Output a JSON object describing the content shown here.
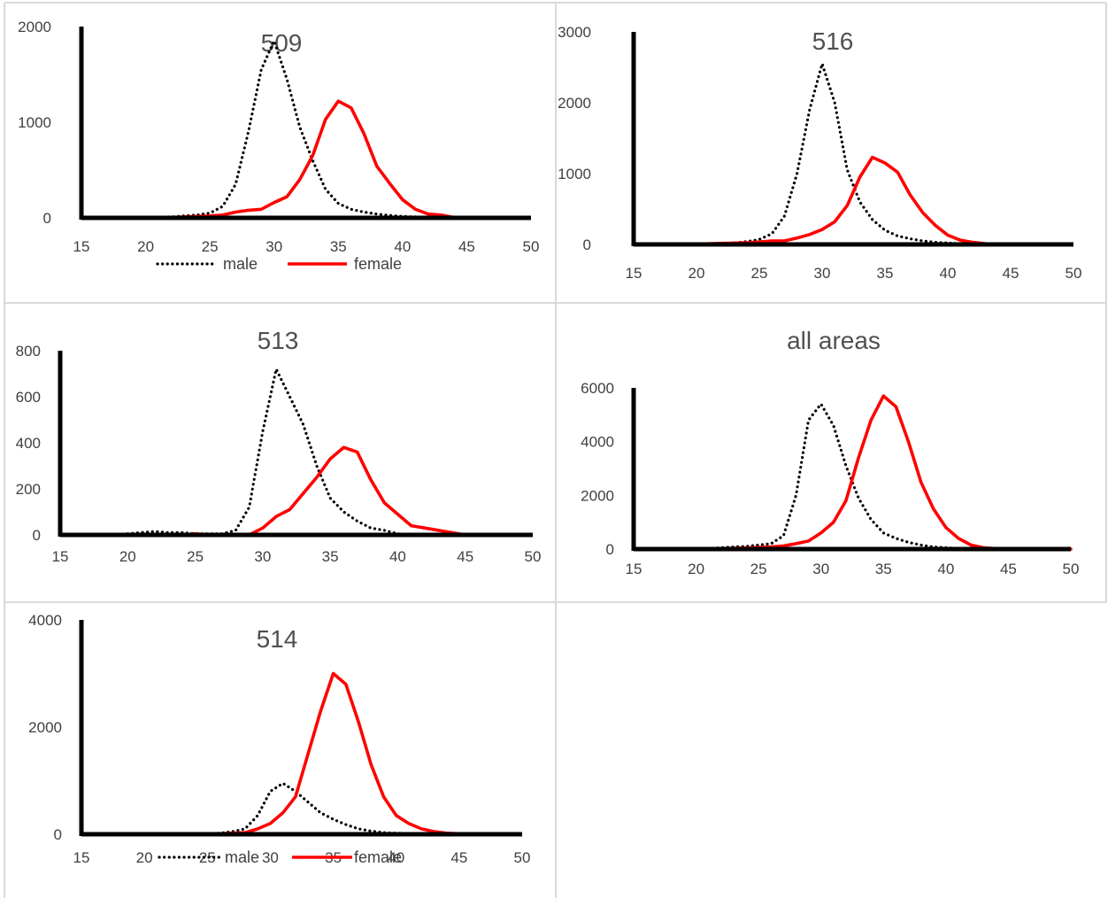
{
  "chart_data": [
    {
      "type": "line",
      "title": "509",
      "x": [
        16,
        17,
        18,
        19,
        20,
        21,
        22,
        23,
        24,
        25,
        26,
        27,
        28,
        29,
        30,
        31,
        32,
        33,
        34,
        35,
        36,
        37,
        38,
        39,
        40,
        41,
        42,
        43,
        44,
        45,
        46
      ],
      "xlim": [
        15,
        50
      ],
      "xticks": [
        15,
        20,
        25,
        30,
        35,
        40,
        45,
        50
      ],
      "ylim": [
        0,
        2000
      ],
      "yticks": [
        0,
        1000,
        2000
      ],
      "legend": "bottom",
      "series": [
        {
          "name": "male",
          "color": "#000000",
          "style": "dotted",
          "values": [
            0,
            0,
            0,
            0,
            0,
            5,
            10,
            20,
            30,
            50,
            120,
            350,
            900,
            1550,
            1850,
            1450,
            950,
            600,
            300,
            150,
            90,
            60,
            40,
            25,
            15,
            10,
            5,
            0,
            0,
            0,
            0
          ]
        },
        {
          "name": "female",
          "color": "#ff0000",
          "style": "solid",
          "values": [
            0,
            0,
            0,
            0,
            0,
            0,
            5,
            10,
            15,
            20,
            30,
            60,
            80,
            90,
            160,
            220,
            400,
            650,
            1030,
            1220,
            1150,
            880,
            540,
            360,
            190,
            90,
            40,
            30,
            5,
            0,
            0
          ]
        }
      ]
    },
    {
      "type": "line",
      "title": "516",
      "x": [
        16,
        17,
        18,
        19,
        20,
        21,
        22,
        23,
        24,
        25,
        26,
        27,
        28,
        29,
        30,
        31,
        32,
        33,
        34,
        35,
        36,
        37,
        38,
        39,
        40,
        41,
        42,
        43,
        44,
        45
      ],
      "xlim": [
        15,
        50
      ],
      "xticks": [
        15,
        20,
        25,
        30,
        35,
        40,
        45,
        50
      ],
      "ylim": [
        0,
        3000
      ],
      "yticks": [
        0,
        1000,
        2000,
        3000
      ],
      "legend": "none",
      "series": [
        {
          "name": "male",
          "color": "#000000",
          "style": "dotted",
          "values": [
            0,
            0,
            0,
            0,
            0,
            5,
            10,
            20,
            40,
            70,
            150,
            400,
            1000,
            1900,
            2550,
            2000,
            1050,
            600,
            350,
            200,
            120,
            80,
            50,
            30,
            20,
            10,
            5,
            0,
            0,
            0
          ]
        },
        {
          "name": "female",
          "color": "#ff0000",
          "style": "solid",
          "values": [
            0,
            0,
            0,
            0,
            0,
            10,
            15,
            20,
            25,
            35,
            50,
            50,
            90,
            140,
            210,
            320,
            550,
            950,
            1230,
            1150,
            1020,
            700,
            450,
            270,
            130,
            60,
            30,
            10,
            5,
            0
          ]
        }
      ]
    },
    {
      "type": "line",
      "title": "513",
      "xlim": [
        15,
        50
      ],
      "xticks": [
        15,
        20,
        25,
        30,
        35,
        40,
        45,
        50
      ],
      "ylim": [
        0,
        800
      ],
      "yticks": [
        0,
        200,
        400,
        600,
        800
      ],
      "legend": "none",
      "series": [
        {
          "name": "male",
          "color": "#000000",
          "style": "dotted",
          "x": [
            20,
            21,
            22,
            23,
            24,
            25,
            26,
            27,
            28,
            29,
            30,
            31,
            32,
            33,
            34,
            35,
            36,
            37,
            38,
            39,
            40,
            41
          ],
          "values": [
            5,
            10,
            15,
            10,
            10,
            5,
            5,
            5,
            20,
            120,
            450,
            720,
            600,
            480,
            300,
            160,
            100,
            60,
            30,
            20,
            5,
            0
          ]
        },
        {
          "name": "female",
          "color": "#ff0000",
          "style": "solid",
          "x": [
            22,
            23,
            24,
            25,
            26,
            27,
            28,
            29,
            30,
            31,
            32,
            33,
            34,
            35,
            36,
            37,
            38,
            39,
            40,
            41,
            42,
            43,
            44,
            45,
            47,
            48
          ],
          "values": [
            0,
            0,
            0,
            5,
            0,
            0,
            0,
            0,
            30,
            80,
            110,
            180,
            250,
            330,
            380,
            360,
            240,
            140,
            90,
            40,
            30,
            20,
            10,
            0,
            0,
            0
          ]
        }
      ]
    },
    {
      "type": "line",
      "title": "all areas",
      "x": [
        15,
        16,
        17,
        18,
        19,
        20,
        21,
        22,
        23,
        24,
        25,
        26,
        27,
        28,
        29,
        30,
        31,
        32,
        33,
        34,
        35,
        36,
        37,
        38,
        39,
        40,
        41,
        42,
        43,
        44,
        45,
        46,
        47,
        48,
        49,
        50
      ],
      "xlim": [
        15,
        50
      ],
      "xticks": [
        15,
        20,
        25,
        30,
        35,
        40,
        45,
        50
      ],
      "ylim": [
        0,
        6000
      ],
      "yticks": [
        0,
        2000,
        4000,
        6000
      ],
      "legend": "none",
      "series": [
        {
          "name": "male",
          "color": "#000000",
          "style": "dotted",
          "values": [
            0,
            0,
            0,
            0,
            0,
            10,
            20,
            50,
            80,
            100,
            150,
            200,
            500,
            2000,
            4800,
            5400,
            4600,
            3100,
            1900,
            1100,
            600,
            400,
            250,
            150,
            80,
            50,
            20,
            10,
            0,
            0,
            0,
            0,
            0,
            0,
            0,
            0
          ]
        },
        {
          "name": "female",
          "color": "#ff0000",
          "style": "solid",
          "values": [
            0,
            0,
            0,
            0,
            0,
            0,
            10,
            20,
            30,
            40,
            60,
            80,
            120,
            200,
            300,
            600,
            1000,
            1800,
            3400,
            4800,
            5700,
            5300,
            4000,
            2500,
            1500,
            800,
            400,
            150,
            50,
            20,
            10,
            0,
            0,
            0,
            0,
            0
          ]
        }
      ]
    },
    {
      "type": "line",
      "title": "514",
      "x": [
        18,
        19,
        20,
        21,
        22,
        23,
        24,
        25,
        26,
        27,
        28,
        29,
        30,
        31,
        32,
        33,
        34,
        35,
        36,
        37,
        38,
        39,
        40,
        41,
        42,
        43,
        44,
        45,
        46,
        47,
        48
      ],
      "xlim": [
        15,
        50
      ],
      "xticks": [
        15,
        20,
        25,
        30,
        35,
        40,
        45,
        50
      ],
      "ylim": [
        0,
        4000
      ],
      "yticks": [
        0,
        2000,
        4000
      ],
      "legend": "bottom",
      "series": [
        {
          "name": "male",
          "color": "#000000",
          "style": "dotted",
          "values": [
            0,
            0,
            0,
            0,
            0,
            0,
            0,
            10,
            20,
            50,
            100,
            350,
            800,
            950,
            800,
            600,
            400,
            280,
            180,
            100,
            60,
            30,
            20,
            10,
            5,
            0,
            0,
            0,
            0,
            0,
            0
          ]
        },
        {
          "name": "female",
          "color": "#ff0000",
          "style": "solid",
          "values": [
            0,
            0,
            0,
            0,
            0,
            0,
            0,
            0,
            10,
            20,
            30,
            100,
            200,
            400,
            700,
            1500,
            2300,
            3000,
            2800,
            2100,
            1300,
            700,
            350,
            200,
            100,
            50,
            20,
            10,
            0,
            0,
            0
          ]
        }
      ]
    }
  ]
}
